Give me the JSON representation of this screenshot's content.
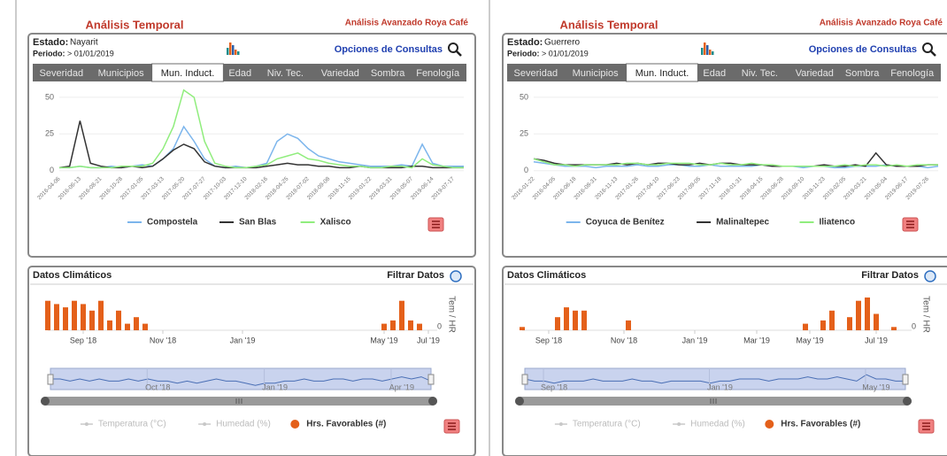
{
  "panels": [
    {
      "title": "Análisis Temporal",
      "brand": "Análisis Avanzado Roya Café",
      "estado_label": "Estado:",
      "estado": "Nayarit",
      "periodo_label": "Periodo:",
      "periodo": "> 01/01/2019",
      "options_label": "Opciones de Consultas",
      "tabs": [
        "Severidad",
        "Municipios",
        "Mun. Induct.",
        "Edad",
        "Niv. Tec.",
        "Variedad",
        "Sombra",
        "Fenología"
      ],
      "active_tab": 2,
      "chart": {
        "type": "line",
        "ylim": [
          -2,
          56
        ],
        "yticks": [
          0,
          25,
          50
        ],
        "categories": [
          "2016-04-06",
          null,
          "2016-06-13",
          null,
          "2016-08-21",
          null,
          "2016-10-28",
          null,
          "2017-01-05",
          null,
          "2017-03-13",
          null,
          "2017-05-20",
          null,
          "2017-07-27",
          null,
          "2017-10-03",
          null,
          "2017-12-10",
          null,
          "2018-02-16",
          null,
          "2018-04-25",
          null,
          "2018-07-02",
          null,
          "2018-09-08",
          null,
          "2018-11-15",
          null,
          "2019-01-22",
          null,
          "2019-03-31",
          null,
          "2019-05-07",
          null,
          "2019-06-14",
          null,
          "2019-07-17",
          null
        ],
        "series": [
          {
            "name": "Compostela",
            "color": "#7cb5ec",
            "values": [
              2,
              2,
              3,
              2,
              2,
              3,
              2,
              3,
              4,
              3,
              8,
              15,
              30,
              20,
              8,
              3,
              2,
              3,
              2,
              3,
              5,
              20,
              25,
              22,
              15,
              10,
              8,
              6,
              5,
              4,
              3,
              3,
              3,
              4,
              3,
              18,
              5,
              3,
              3,
              3
            ]
          },
          {
            "name": "San Blas",
            "color": "#333333",
            "values": [
              2,
              3,
              34,
              5,
              3,
              2,
              2,
              3,
              2,
              3,
              8,
              14,
              18,
              15,
              6,
              3,
              2,
              2,
              2,
              2,
              3,
              4,
              5,
              4,
              4,
              3,
              3,
              2,
              2,
              3,
              2,
              2,
              2,
              2,
              3,
              3,
              2,
              2,
              2,
              2
            ]
          },
          {
            "name": "Xalisco",
            "color": "#90ed7d",
            "values": [
              2,
              2,
              3,
              2,
              2,
              2,
              3,
              3,
              3,
              5,
              15,
              30,
              55,
              50,
              20,
              5,
              3,
              2,
              2,
              3,
              4,
              8,
              10,
              12,
              8,
              7,
              5,
              4,
              3,
              3,
              2,
              2,
              3,
              3,
              2,
              8,
              4,
              3,
              2,
              2
            ]
          }
        ]
      },
      "climate": {
        "title": "Datos Climáticos",
        "filter_label": "Filtrar Datos",
        "type": "bar",
        "color": "#e4601a",
        "ylabel": "Tem / HR",
        "ylim": [
          0,
          10
        ],
        "yticks": [
          0
        ],
        "xlim": [
          0,
          44
        ],
        "xticks": [
          {
            "value": 4,
            "label": "Sep '18"
          },
          {
            "value": 13,
            "label": "Nov '18"
          },
          {
            "value": 22,
            "label": "Jan '19"
          },
          {
            "value": 38,
            "label": "May '19"
          },
          {
            "value": 43,
            "label": "Jul '19"
          }
        ],
        "values": [
          9,
          8,
          7,
          9,
          8,
          6,
          9,
          3,
          6,
          2,
          4,
          2,
          0,
          0,
          0,
          0,
          0,
          0,
          0,
          0,
          0,
          0,
          0,
          0,
          0,
          0,
          0,
          0,
          0,
          0,
          0,
          0,
          0,
          0,
          0,
          0,
          0,
          0,
          2,
          3,
          9,
          3,
          2,
          0
        ],
        "navigator": {
          "ylim": [
            0,
            10
          ],
          "xlim": [
            0,
            39
          ],
          "values": [
            5,
            5,
            4,
            5,
            4,
            5,
            4,
            4,
            5,
            4,
            5,
            4,
            4,
            3,
            4,
            3,
            4,
            5,
            4,
            4,
            3,
            2,
            3,
            3,
            4,
            4,
            5,
            4,
            4,
            5,
            5,
            4,
            5,
            5,
            4,
            5,
            6,
            5,
            6,
            4
          ],
          "xticks": [
            {
              "value": 11,
              "label": "Oct '18"
            },
            {
              "value": 23,
              "label": "Jan '19"
            },
            {
              "value": 36,
              "label": "Apr '19"
            }
          ]
        },
        "legend": [
          {
            "name": "Temperatura (°C)",
            "color": "#c8c8c8"
          },
          {
            "name": "Humedad (%)",
            "color": "#c8c8c8"
          },
          {
            "name": "Hrs. Favorables (#)",
            "color": "#e4601a"
          }
        ]
      }
    },
    {
      "title": "Análisis Temporal",
      "brand": "Análisis Avanzado Roya Café",
      "estado_label": "Estado:",
      "estado": "Guerrero",
      "periodo_label": "Periodo:",
      "periodo": "> 01/01/2019",
      "options_label": "Opciones de Consultas",
      "tabs": [
        "Severidad",
        "Municipios",
        "Mun. Induct.",
        "Edad",
        "Niv. Tec.",
        "Variedad",
        "Sombra",
        "Fenología"
      ],
      "active_tab": 2,
      "chart": {
        "type": "line",
        "ylim": [
          -2,
          56
        ],
        "yticks": [
          0,
          25,
          50
        ],
        "categories": [
          "2016-01-22",
          null,
          "2016-04-05",
          null,
          "2016-06-18",
          null,
          "2016-08-31",
          null,
          "2016-11-13",
          null,
          "2017-01-26",
          null,
          "2017-04-10",
          null,
          "2017-06-23",
          null,
          "2017-09-05",
          null,
          "2017-11-18",
          null,
          "2018-01-31",
          null,
          "2018-04-15",
          null,
          "2018-06-28",
          null,
          "2018-09-10",
          null,
          "2018-11-23",
          null,
          "2019-02-05",
          null,
          "2019-03-21",
          null,
          "2019-05-04",
          null,
          "2019-06-17",
          null,
          "2019-07-26",
          null
        ],
        "series": [
          {
            "name": "Coyuca de Benítez",
            "color": "#7cb5ec",
            "values": [
              6,
              5,
              4,
              3,
              3,
              3,
              2,
              3,
              3,
              3,
              4,
              3,
              3,
              4,
              4,
              3,
              3,
              4,
              3,
              3,
              3,
              3,
              4,
              3,
              3,
              3,
              2,
              3,
              3,
              2,
              2,
              3,
              3,
              3,
              4,
              3,
              3,
              3,
              2,
              3
            ]
          },
          {
            "name": "Malinaltepec",
            "color": "#333333",
            "values": [
              8,
              7,
              5,
              4,
              4,
              4,
              4,
              4,
              5,
              4,
              5,
              4,
              5,
              5,
              4,
              4,
              5,
              4,
              5,
              5,
              4,
              4,
              4,
              3,
              3,
              3,
              3,
              3,
              4,
              3,
              3,
              4,
              3,
              12,
              4,
              3,
              3,
              3,
              4,
              4
            ]
          },
          {
            "name": "Iliatenco",
            "color": "#90ed7d",
            "values": [
              8,
              6,
              4,
              4,
              3,
              4,
              4,
              4,
              4,
              5,
              5,
              4,
              4,
              5,
              5,
              5,
              4,
              4,
              5,
              4,
              4,
              5,
              4,
              4,
              3,
              3,
              3,
              3,
              3,
              3,
              4,
              3,
              4,
              4,
              3,
              4,
              3,
              4,
              4,
              4
            ]
          }
        ]
      },
      "climate": {
        "title": "Datos Climáticos",
        "filter_label": "Filtrar Datos",
        "type": "bar",
        "color": "#e4601a",
        "ylabel": "Tem / HR",
        "ylim": [
          0,
          10
        ],
        "yticks": [
          0
        ],
        "xlim": [
          0,
          44
        ],
        "xticks": [
          {
            "value": 3,
            "label": "Sep '18"
          },
          {
            "value": 11.5,
            "label": "Nov '18"
          },
          {
            "value": 19.5,
            "label": "Jan '19"
          },
          {
            "value": 26.5,
            "label": "Mar '19"
          },
          {
            "value": 32.5,
            "label": "May '19"
          },
          {
            "value": 40,
            "label": "Jul '19"
          }
        ],
        "values": [
          1,
          0,
          0,
          0,
          4,
          7,
          6,
          6,
          0,
          0,
          0,
          0,
          3,
          0,
          0,
          0,
          0,
          0,
          0,
          0,
          0,
          0,
          0,
          0,
          0,
          0,
          0,
          0,
          0,
          0,
          0,
          0,
          2,
          0,
          3,
          6,
          0,
          4,
          9,
          10,
          5,
          0,
          1,
          0
        ],
        "navigator": {
          "ylim": [
            0,
            10
          ],
          "xlim": [
            0,
            39
          ],
          "values": [
            5,
            4,
            4,
            3,
            4,
            4,
            4,
            5,
            4,
            4,
            4,
            5,
            4,
            4,
            3,
            4,
            4,
            4,
            4,
            3,
            4,
            4,
            5,
            5,
            5,
            4,
            5,
            5,
            5,
            6,
            5,
            5,
            6,
            5,
            4,
            7,
            5,
            5,
            4,
            4
          ],
          "xticks": [
            {
              "value": 3,
              "label": "Sep '18"
            },
            {
              "value": 20,
              "label": "Jan '19"
            },
            {
              "value": 36,
              "label": "May '19"
            }
          ]
        },
        "legend": [
          {
            "name": "Temperatura (°C)",
            "color": "#c8c8c8"
          },
          {
            "name": "Humedad (%)",
            "color": "#c8c8c8"
          },
          {
            "name": "Hrs. Favorables (#)",
            "color": "#e4601a"
          }
        ]
      }
    }
  ]
}
